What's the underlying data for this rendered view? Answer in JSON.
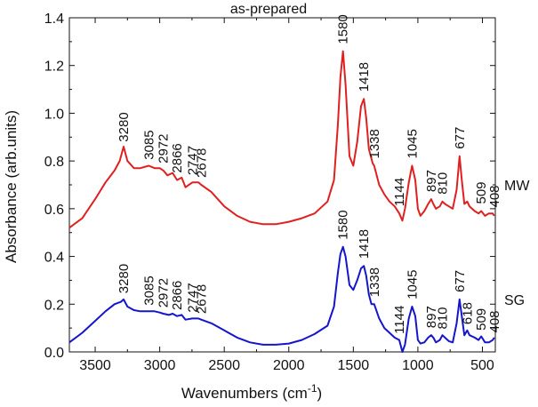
{
  "chart_data": {
    "type": "line",
    "title": "as-prepared",
    "xlabel": "Wavenumbers (cm",
    "xlabel_sup": "-1",
    "xlabel_close": ")",
    "ylabel": "Absorbance (arb.units)",
    "xlim": [
      3700,
      400
    ],
    "ylim": [
      0,
      1.4
    ],
    "xticks": [
      3500,
      3000,
      2500,
      2000,
      1500,
      1000,
      500
    ],
    "yticks": [
      0.0,
      0.2,
      0.4,
      0.6,
      0.8,
      1.0,
      1.2,
      1.4
    ],
    "ytick_labels": [
      "0.0",
      "0.2",
      "0.4",
      "0.6",
      "0.8",
      "1.0",
      "1.2",
      "1.4"
    ],
    "xtick_labels": [
      "3500",
      "3000",
      "2500",
      "2000",
      "1500",
      "1000",
      "500"
    ],
    "series": [
      {
        "name": "MW",
        "color": "#e02020",
        "points": [
          [
            3700,
            0.52
          ],
          [
            3600,
            0.56
          ],
          [
            3500,
            0.64
          ],
          [
            3420,
            0.71
          ],
          [
            3350,
            0.76
          ],
          [
            3310,
            0.8
          ],
          [
            3280,
            0.86
          ],
          [
            3250,
            0.8
          ],
          [
            3200,
            0.77
          ],
          [
            3150,
            0.77
          ],
          [
            3085,
            0.78
          ],
          [
            3040,
            0.77
          ],
          [
            3000,
            0.77
          ],
          [
            2972,
            0.76
          ],
          [
            2940,
            0.74
          ],
          [
            2900,
            0.75
          ],
          [
            2866,
            0.72
          ],
          [
            2830,
            0.73
          ],
          [
            2800,
            0.69
          ],
          [
            2747,
            0.71
          ],
          [
            2700,
            0.71
          ],
          [
            2678,
            0.7
          ],
          [
            2600,
            0.67
          ],
          [
            2500,
            0.61
          ],
          [
            2400,
            0.57
          ],
          [
            2300,
            0.545
          ],
          [
            2200,
            0.535
          ],
          [
            2100,
            0.535
          ],
          [
            2000,
            0.545
          ],
          [
            1900,
            0.56
          ],
          [
            1800,
            0.58
          ],
          [
            1700,
            0.63
          ],
          [
            1650,
            0.72
          ],
          [
            1620,
            0.95
          ],
          [
            1600,
            1.15
          ],
          [
            1580,
            1.26
          ],
          [
            1560,
            1.12
          ],
          [
            1530,
            0.82
          ],
          [
            1500,
            0.78
          ],
          [
            1470,
            0.88
          ],
          [
            1440,
            1.03
          ],
          [
            1418,
            1.06
          ],
          [
            1400,
            0.98
          ],
          [
            1380,
            0.85
          ],
          [
            1350,
            0.79
          ],
          [
            1338,
            0.78
          ],
          [
            1300,
            0.7
          ],
          [
            1260,
            0.66
          ],
          [
            1220,
            0.63
          ],
          [
            1180,
            0.61
          ],
          [
            1144,
            0.58
          ],
          [
            1120,
            0.55
          ],
          [
            1100,
            0.6
          ],
          [
            1070,
            0.71
          ],
          [
            1045,
            0.78
          ],
          [
            1020,
            0.72
          ],
          [
            1000,
            0.6
          ],
          [
            980,
            0.57
          ],
          [
            950,
            0.59
          ],
          [
            920,
            0.62
          ],
          [
            897,
            0.64
          ],
          [
            880,
            0.62
          ],
          [
            860,
            0.6
          ],
          [
            830,
            0.61
          ],
          [
            810,
            0.63
          ],
          [
            790,
            0.62
          ],
          [
            760,
            0.61
          ],
          [
            730,
            0.6
          ],
          [
            700,
            0.68
          ],
          [
            677,
            0.82
          ],
          [
            660,
            0.72
          ],
          [
            640,
            0.62
          ],
          [
            618,
            0.63
          ],
          [
            600,
            0.61
          ],
          [
            560,
            0.59
          ],
          [
            530,
            0.58
          ],
          [
            509,
            0.59
          ],
          [
            480,
            0.57
          ],
          [
            450,
            0.58
          ],
          [
            420,
            0.58
          ],
          [
            408,
            0.57
          ]
        ]
      },
      {
        "name": "SG",
        "color": "#1515cc",
        "points": [
          [
            3700,
            0.04
          ],
          [
            3600,
            0.08
          ],
          [
            3500,
            0.13
          ],
          [
            3420,
            0.17
          ],
          [
            3350,
            0.2
          ],
          [
            3300,
            0.21
          ],
          [
            3280,
            0.22
          ],
          [
            3250,
            0.19
          ],
          [
            3200,
            0.175
          ],
          [
            3150,
            0.17
          ],
          [
            3085,
            0.17
          ],
          [
            3040,
            0.17
          ],
          [
            3000,
            0.165
          ],
          [
            2972,
            0.16
          ],
          [
            2930,
            0.155
          ],
          [
            2900,
            0.16
          ],
          [
            2866,
            0.15
          ],
          [
            2830,
            0.155
          ],
          [
            2800,
            0.135
          ],
          [
            2747,
            0.14
          ],
          [
            2700,
            0.14
          ],
          [
            2678,
            0.135
          ],
          [
            2600,
            0.12
          ],
          [
            2500,
            0.09
          ],
          [
            2400,
            0.06
          ],
          [
            2300,
            0.04
          ],
          [
            2200,
            0.03
          ],
          [
            2100,
            0.03
          ],
          [
            2000,
            0.035
          ],
          [
            1900,
            0.05
          ],
          [
            1800,
            0.075
          ],
          [
            1700,
            0.11
          ],
          [
            1650,
            0.19
          ],
          [
            1620,
            0.33
          ],
          [
            1600,
            0.41
          ],
          [
            1580,
            0.44
          ],
          [
            1560,
            0.4
          ],
          [
            1530,
            0.28
          ],
          [
            1500,
            0.26
          ],
          [
            1470,
            0.3
          ],
          [
            1440,
            0.35
          ],
          [
            1418,
            0.36
          ],
          [
            1400,
            0.32
          ],
          [
            1380,
            0.24
          ],
          [
            1360,
            0.2
          ],
          [
            1338,
            0.2
          ],
          [
            1300,
            0.14
          ],
          [
            1260,
            0.1
          ],
          [
            1220,
            0.08
          ],
          [
            1180,
            0.06
          ],
          [
            1144,
            0.05
          ],
          [
            1120,
            0.0
          ],
          [
            1100,
            0.03
          ],
          [
            1070,
            0.14
          ],
          [
            1045,
            0.19
          ],
          [
            1020,
            0.15
          ],
          [
            1000,
            0.05
          ],
          [
            980,
            0.035
          ],
          [
            950,
            0.04
          ],
          [
            920,
            0.06
          ],
          [
            897,
            0.07
          ],
          [
            880,
            0.06
          ],
          [
            860,
            0.04
          ],
          [
            830,
            0.05
          ],
          [
            810,
            0.07
          ],
          [
            790,
            0.06
          ],
          [
            760,
            0.045
          ],
          [
            730,
            0.04
          ],
          [
            700,
            0.12
          ],
          [
            677,
            0.22
          ],
          [
            660,
            0.15
          ],
          [
            640,
            0.07
          ],
          [
            618,
            0.09
          ],
          [
            600,
            0.07
          ],
          [
            560,
            0.06
          ],
          [
            530,
            0.05
          ],
          [
            509,
            0.065
          ],
          [
            480,
            0.04
          ],
          [
            450,
            0.04
          ],
          [
            420,
            0.05
          ],
          [
            408,
            0.06
          ]
        ]
      }
    ],
    "annotations": [
      {
        "series": "MW",
        "text": "3280",
        "x": 3280,
        "y": 0.865
      },
      {
        "series": "MW",
        "text": "3085",
        "x": 3085,
        "y": 0.79
      },
      {
        "series": "MW",
        "text": "2972",
        "x": 2972,
        "y": 0.775
      },
      {
        "series": "MW",
        "text": "2866",
        "x": 2866,
        "y": 0.735
      },
      {
        "series": "MW",
        "text": "2747",
        "x": 2747,
        "y": 0.725
      },
      {
        "series": "MW",
        "text": "2678",
        "x": 2678,
        "y": 0.715
      },
      {
        "series": "MW",
        "text": "1580",
        "x": 1580,
        "y": 1.275
      },
      {
        "series": "MW",
        "text": "1418",
        "x": 1418,
        "y": 1.075
      },
      {
        "series": "MW",
        "text": "1338",
        "x": 1338,
        "y": 0.795
      },
      {
        "series": "MW",
        "text": "1144",
        "x": 1144,
        "y": 0.595
      },
      {
        "series": "MW",
        "text": "1045",
        "x": 1045,
        "y": 0.795
      },
      {
        "series": "MW",
        "text": "897",
        "x": 897,
        "y": 0.655
      },
      {
        "series": "MW",
        "text": "810",
        "x": 810,
        "y": 0.645
      },
      {
        "series": "MW",
        "text": "677",
        "x": 677,
        "y": 0.835
      },
      {
        "series": "MW",
        "text": "509",
        "x": 509,
        "y": 0.605
      },
      {
        "series": "MW",
        "text": "408",
        "x": 408,
        "y": 0.59
      },
      {
        "series": "SG",
        "text": "3280",
        "x": 3280,
        "y": 0.23
      },
      {
        "series": "SG",
        "text": "3085",
        "x": 3085,
        "y": 0.18
      },
      {
        "series": "SG",
        "text": "2972",
        "x": 2972,
        "y": 0.17
      },
      {
        "series": "SG",
        "text": "2866",
        "x": 2866,
        "y": 0.16
      },
      {
        "series": "SG",
        "text": "2747",
        "x": 2747,
        "y": 0.15
      },
      {
        "series": "SG",
        "text": "2678",
        "x": 2678,
        "y": 0.145
      },
      {
        "series": "SG",
        "text": "1580",
        "x": 1580,
        "y": 0.455
      },
      {
        "series": "SG",
        "text": "1418",
        "x": 1418,
        "y": 0.375
      },
      {
        "series": "SG",
        "text": "1338",
        "x": 1338,
        "y": 0.215
      },
      {
        "series": "SG",
        "text": "1144",
        "x": 1144,
        "y": 0.06
      },
      {
        "series": "SG",
        "text": "1045",
        "x": 1045,
        "y": 0.205
      },
      {
        "series": "SG",
        "text": "897",
        "x": 897,
        "y": 0.085
      },
      {
        "series": "SG",
        "text": "810",
        "x": 810,
        "y": 0.08
      },
      {
        "series": "SG",
        "text": "677",
        "x": 677,
        "y": 0.235
      },
      {
        "series": "SG",
        "text": "618",
        "x": 618,
        "y": 0.1
      },
      {
        "series": "SG",
        "text": "509",
        "x": 509,
        "y": 0.075
      },
      {
        "series": "SG",
        "text": "408",
        "x": 408,
        "y": 0.065
      }
    ],
    "legend": [
      {
        "series": "MW",
        "text": "MW"
      },
      {
        "series": "SG",
        "text": "SG"
      }
    ]
  }
}
